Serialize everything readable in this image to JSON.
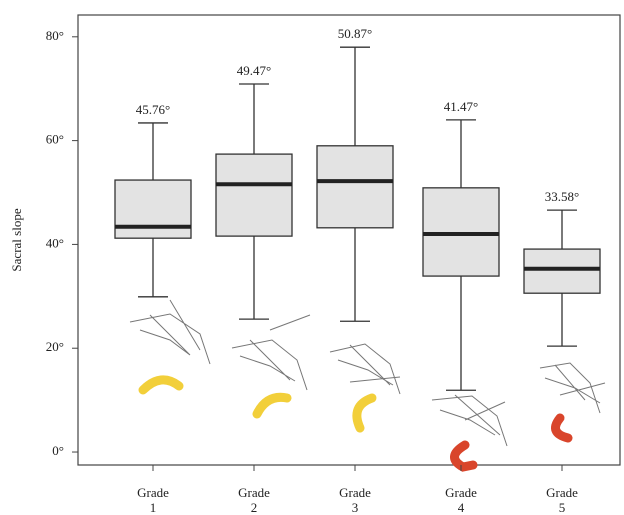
{
  "chart_data": {
    "type": "box",
    "y_label": "Sacral slope",
    "categories": [
      "Grade 1",
      "Grade 2",
      "Grade 3",
      "Grade 4",
      "Grade 5"
    ],
    "min": [
      29.9,
      25.6,
      25.2,
      11.9,
      20.4
    ],
    "q1": [
      41.2,
      41.6,
      43.2,
      33.9,
      30.6
    ],
    "median": [
      43.4,
      51.6,
      52.2,
      42,
      35.3
    ],
    "q3": [
      52.4,
      57.4,
      59,
      50.9,
      39.1
    ],
    "max": [
      63.4,
      70.9,
      78,
      64,
      46.6
    ],
    "annotations": [
      "45.76°",
      "49.47°",
      "50.87°",
      "41.47°",
      "33.58°"
    ],
    "color": "#e3e3e3",
    "ylim": [
      -2.5,
      84.2
    ],
    "yticks": [
      {
        "value": 0,
        "label": "0°"
      },
      {
        "value": 20,
        "label": "20°"
      },
      {
        "value": 40,
        "label": "40°"
      },
      {
        "value": 60,
        "label": "60°"
      },
      {
        "value": 80,
        "label": "80°"
      }
    ]
  }
}
